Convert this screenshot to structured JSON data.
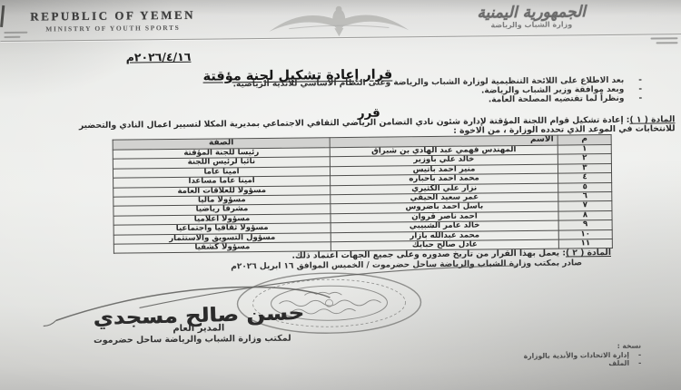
{
  "page": {
    "header": {
      "english_title": "REPUBLIC OF YEMEN",
      "english_subtitle": "MINISTRY OF YOUTH SPORTS",
      "arabic_title": "الجمهورية اليمنية",
      "arabic_subtitle": "وزارة الشباب والرياضة"
    },
    "date": "٢٠٢٦/٤/١٦م",
    "title": "قرار إعادة تشكيل لجنة مؤقتة",
    "preamble": [
      "بعد الاطلاع على اللائحة التنظيمية لوزارة الشباب والرياضة وعلى النظام الأساسي للأندية الرياضية.",
      "وبعد موافقة وزير الشباب والرياضة.",
      "ونظراً لما تقتضيه المصلحة العامة."
    ],
    "decree_word": "قرر",
    "article1": {
      "label": "المادة ( ١ )",
      "text": ": إعادة تشكيل قوام اللجنة المؤقتة لإدارة شئون نادي التضامن الرياضي الثقافي الاجتماعي بمديرية المكلا لتسيير اعمال النادي والتحضير للانتخابات في الموعد الذي تحدده الوزارة ، من الاخوة :"
    },
    "table": {
      "headers": [
        "م",
        "الاسم",
        "الصفة"
      ],
      "rows": [
        [
          "١",
          "المهندس فهمي عبد الهادي بن شبراق",
          "رئيسا للجنة المؤقتة"
        ],
        [
          "٢",
          "خالد علي باوزير",
          "نائبا لرئيس اللجنة"
        ],
        [
          "٣",
          "منير احمد باتيس",
          "امينا عاما"
        ],
        [
          "٤",
          "محمد احمد باحباره",
          "امينا عاما مساعدا"
        ],
        [
          "٥",
          "نزار علي الكثيري",
          "مسؤولا للعلاقات العامة"
        ],
        [
          "٦",
          "عمر سعيد الحيقي",
          "مسؤولا ماليا"
        ],
        [
          "٧",
          "باسل احمد باضروس",
          "مشرفا رياضيا"
        ],
        [
          "٨",
          "احمد ناصر قروان",
          "مسؤولا اعلاميا"
        ],
        [
          "٩",
          "خالد عامر الشبيبي",
          "مسؤولا ثقافيا واجتماعيا"
        ],
        [
          "١٠",
          "محمد عبدالله بازار",
          "مسؤول التسويق والاستثمار"
        ],
        [
          "١١",
          "عادل صالح حبايك",
          "مسؤولا كشفيا"
        ]
      ]
    },
    "article2": {
      "label": "المادة ( ٢ )",
      "text": ": يعمل بهذا القرار من تاريخ صدوره وعلى جميع الجهات اعتماد ذلك."
    },
    "issued_line": "صادر بمكتب وزارة الشباب والرياضة ساحل حضرموت / الخميس الموافق ١٦ ابريل ٢٠٢٦م",
    "signature": {
      "name": "حسن صالح مسجدي",
      "title": "المدير العام",
      "office": "لمكتب وزارة الشباب والرياضة ساحل حضرموت"
    },
    "footer": {
      "copies_label": "نسخة :",
      "items": [
        "إدارة الاتحادات والأندية بالوزارة",
        "الملف"
      ]
    }
  },
  "colors": {
    "ink": "#2e2e2e",
    "paper": "#eaebe8",
    "table_border": "#4d4d4b",
    "header_shade": "#d2d2d0",
    "stamp": "#7f7f7d"
  }
}
